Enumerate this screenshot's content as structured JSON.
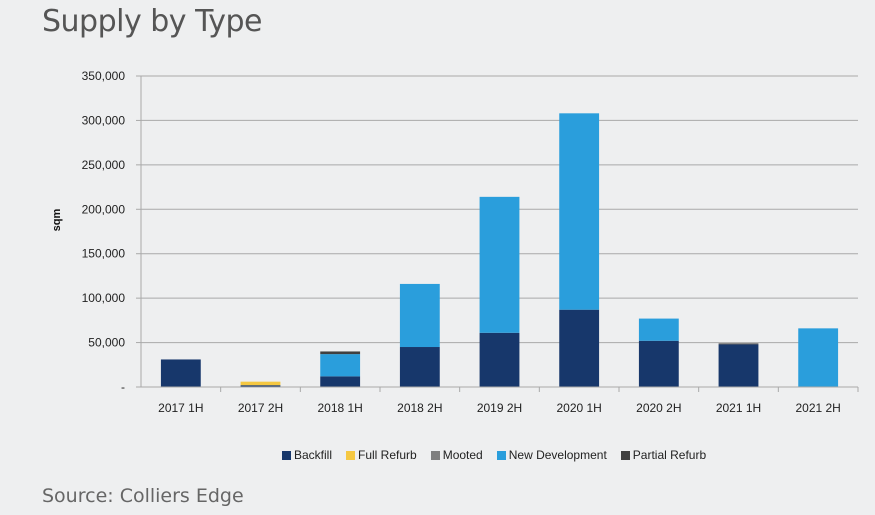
{
  "title": "Supply by Type",
  "source": "Source: Colliers Edge",
  "colors": {
    "Backfill": "#17376b",
    "Full Refurb": "#f5c842",
    "Mooted": "#7f7f7f",
    "New Development": "#2a9edc",
    "Partial Refurb": "#404040",
    "grid": "#a9a9a9",
    "background": "#eeeff0"
  },
  "chart_data": {
    "type": "bar",
    "stacked": true,
    "title": "Supply by Type",
    "ylabel": "sqm",
    "xlabel": "",
    "ylim": [
      0,
      350000
    ],
    "yticks": [
      0,
      50000,
      100000,
      150000,
      200000,
      250000,
      300000,
      350000
    ],
    "ytick_labels": [
      "-",
      "50,000",
      "100,000",
      "150,000",
      "200,000",
      "250,000",
      "300,000",
      "350,000"
    ],
    "grid": true,
    "legend_position": "bottom",
    "categories": [
      "2017 1H",
      "2017 2H",
      "2018 1H",
      "2018 2H",
      "2019 2H",
      "2020 1H",
      "2020 2H",
      "2021 1H",
      "2021 2H"
    ],
    "series": [
      {
        "name": "Backfill",
        "values": [
          31000,
          2000,
          12000,
          45000,
          61000,
          87000,
          52000,
          48000,
          0
        ]
      },
      {
        "name": "Full Refurb",
        "values": [
          0,
          4000,
          0,
          0,
          0,
          0,
          0,
          0,
          0
        ]
      },
      {
        "name": "Mooted",
        "values": [
          0,
          0,
          0,
          0,
          0,
          0,
          0,
          0,
          0
        ]
      },
      {
        "name": "New Development",
        "values": [
          0,
          0,
          25000,
          71000,
          153000,
          221000,
          25000,
          0,
          66000
        ]
      },
      {
        "name": "Partial Refurb",
        "values": [
          0,
          0,
          3000,
          0,
          0,
          0,
          0,
          1000,
          0
        ]
      }
    ]
  }
}
